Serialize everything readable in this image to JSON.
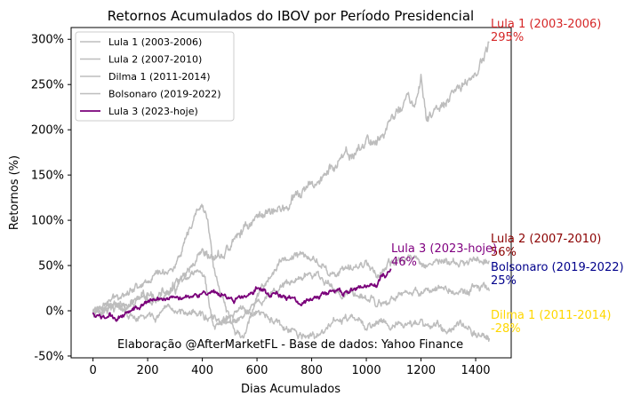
{
  "chart_data": {
    "type": "line",
    "title": "Retornos Acumulados do IBOV por Período Presidencial",
    "xlabel": "Dias Acumulados",
    "ylabel": "Retornos (%)",
    "xlim": [
      -80,
      1530
    ],
    "ylim": [
      -52,
      313
    ],
    "xticks": [
      0,
      200,
      400,
      600,
      800,
      1000,
      1200,
      1400
    ],
    "xtick_labels": [
      "0",
      "200",
      "400",
      "600",
      "800",
      "1000",
      "1200",
      "1400"
    ],
    "yticks": [
      -50,
      0,
      50,
      100,
      150,
      200,
      250,
      300
    ],
    "ytick_labels": [
      "-50%",
      "0%",
      "50%",
      "100%",
      "150%",
      "200%",
      "250%",
      "300%"
    ],
    "legend_position": "top-left",
    "credit": "Elaboração @AfterMarketFL - Base de dados: Yahoo Finance",
    "series": [
      {
        "name": "Lula 1 (2003-2006)",
        "color": "#bdbdbd",
        "knots": [
          [
            0,
            0
          ],
          [
            60,
            5
          ],
          [
            120,
            3
          ],
          [
            200,
            14
          ],
          [
            300,
            22
          ],
          [
            400,
            58
          ],
          [
            420,
            56
          ],
          [
            480,
            62
          ],
          [
            560,
            94
          ],
          [
            640,
            112
          ],
          [
            700,
            112
          ],
          [
            750,
            126
          ],
          [
            800,
            138
          ],
          [
            850,
            150
          ],
          [
            900,
            165
          ],
          [
            950,
            172
          ],
          [
            1000,
            186
          ],
          [
            1050,
            190
          ],
          [
            1100,
            215
          ],
          [
            1150,
            235
          ],
          [
            1180,
            225
          ],
          [
            1200,
            252
          ],
          [
            1220,
            215
          ],
          [
            1260,
            220
          ],
          [
            1300,
            230
          ],
          [
            1350,
            250
          ],
          [
            1400,
            262
          ],
          [
            1430,
            280
          ],
          [
            1450,
            295
          ]
        ],
        "annotation": {
          "text": "Lula 1 (2003-2006)",
          "value_text": "295%",
          "color": "#d62728"
        }
      },
      {
        "name": "Lula 2 (2007-2010)",
        "color": "#bdbdbd",
        "knots": [
          [
            0,
            0
          ],
          [
            60,
            10
          ],
          [
            120,
            22
          ],
          [
            180,
            30
          ],
          [
            240,
            42
          ],
          [
            300,
            48
          ],
          [
            340,
            75
          ],
          [
            370,
            100
          ],
          [
            385,
            112
          ],
          [
            400,
            115
          ],
          [
            420,
            100
          ],
          [
            440,
            50
          ],
          [
            480,
            5
          ],
          [
            520,
            -22
          ],
          [
            560,
            -25
          ],
          [
            600,
            20
          ],
          [
            650,
            38
          ],
          [
            700,
            58
          ],
          [
            760,
            62
          ],
          [
            820,
            55
          ],
          [
            880,
            40
          ],
          [
            940,
            45
          ],
          [
            1000,
            55
          ],
          [
            1040,
            40
          ],
          [
            1100,
            52
          ],
          [
            1160,
            60
          ],
          [
            1220,
            52
          ],
          [
            1280,
            55
          ],
          [
            1350,
            50
          ],
          [
            1400,
            58
          ],
          [
            1450,
            56
          ]
        ],
        "annotation": {
          "text": "Lula 2 (2007-2010)",
          "value_text": "56%",
          "color": "#8b0000"
        }
      },
      {
        "name": "Dilma 1 (2011-2014)",
        "color": "#bdbdbd",
        "knots": [
          [
            0,
            0
          ],
          [
            80,
            5
          ],
          [
            150,
            -10
          ],
          [
            250,
            -5
          ],
          [
            350,
            2
          ],
          [
            450,
            -12
          ],
          [
            520,
            -14
          ],
          [
            560,
            -5
          ],
          [
            600,
            -3
          ],
          [
            640,
            -8
          ],
          [
            700,
            -20
          ],
          [
            760,
            -28
          ],
          [
            820,
            -30
          ],
          [
            880,
            -12
          ],
          [
            940,
            -8
          ],
          [
            1000,
            -18
          ],
          [
            1060,
            -10
          ],
          [
            1100,
            -15
          ],
          [
            1160,
            -18
          ],
          [
            1200,
            -12
          ],
          [
            1240,
            -15
          ],
          [
            1300,
            -22
          ],
          [
            1340,
            -10
          ],
          [
            1380,
            -20
          ],
          [
            1420,
            -30
          ],
          [
            1450,
            -28
          ]
        ],
        "annotation": {
          "text": "Dilma 1 (2011-2014)",
          "value_text": "-28%",
          "color": "#ffd700"
        }
      },
      {
        "name": "Bolsonaro (2019-2022)",
        "color": "#bdbdbd",
        "knots": [
          [
            0,
            0
          ],
          [
            60,
            6
          ],
          [
            120,
            10
          ],
          [
            180,
            12
          ],
          [
            240,
            10
          ],
          [
            280,
            22
          ],
          [
            300,
            30
          ],
          [
            330,
            35
          ],
          [
            360,
            42
          ],
          [
            380,
            44
          ],
          [
            400,
            40
          ],
          [
            410,
            35
          ],
          [
            420,
            15
          ],
          [
            440,
            -18
          ],
          [
            470,
            -12
          ],
          [
            500,
            -8
          ],
          [
            540,
            2
          ],
          [
            580,
            4
          ],
          [
            620,
            10
          ],
          [
            660,
            22
          ],
          [
            700,
            30
          ],
          [
            740,
            32
          ],
          [
            780,
            40
          ],
          [
            820,
            38
          ],
          [
            860,
            28
          ],
          [
            920,
            20
          ],
          [
            980,
            18
          ],
          [
            1040,
            5
          ],
          [
            1100,
            12
          ],
          [
            1160,
            18
          ],
          [
            1220,
            22
          ],
          [
            1280,
            28
          ],
          [
            1340,
            18
          ],
          [
            1400,
            25
          ],
          [
            1450,
            25
          ]
        ],
        "annotation": {
          "text": "Bolsonaro (2019-2022)",
          "value_text": "25%",
          "color": "#00008b"
        }
      },
      {
        "name": "Lula 3 (2023-hoje)",
        "color": "#7a007a",
        "knots": [
          [
            0,
            -2
          ],
          [
            30,
            -8
          ],
          [
            60,
            -5
          ],
          [
            90,
            -10
          ],
          [
            120,
            -2
          ],
          [
            160,
            5
          ],
          [
            200,
            10
          ],
          [
            240,
            13
          ],
          [
            280,
            16
          ],
          [
            320,
            15
          ],
          [
            360,
            18
          ],
          [
            400,
            20
          ],
          [
            420,
            16
          ],
          [
            440,
            18
          ],
          [
            480,
            16
          ],
          [
            520,
            12
          ],
          [
            560,
            16
          ],
          [
            600,
            25
          ],
          [
            640,
            20
          ],
          [
            680,
            18
          ],
          [
            720,
            14
          ],
          [
            760,
            8
          ],
          [
            800,
            12
          ],
          [
            840,
            18
          ],
          [
            880,
            22
          ],
          [
            920,
            20
          ],
          [
            960,
            24
          ],
          [
            1000,
            26
          ],
          [
            1040,
            28
          ],
          [
            1060,
            40
          ],
          [
            1070,
            36
          ],
          [
            1080,
            44
          ],
          [
            1090,
            46
          ]
        ],
        "annotation": {
          "text": "Lula 3 (2023-hoje)",
          "value_text": "46%",
          "color": "#800080"
        }
      }
    ]
  }
}
